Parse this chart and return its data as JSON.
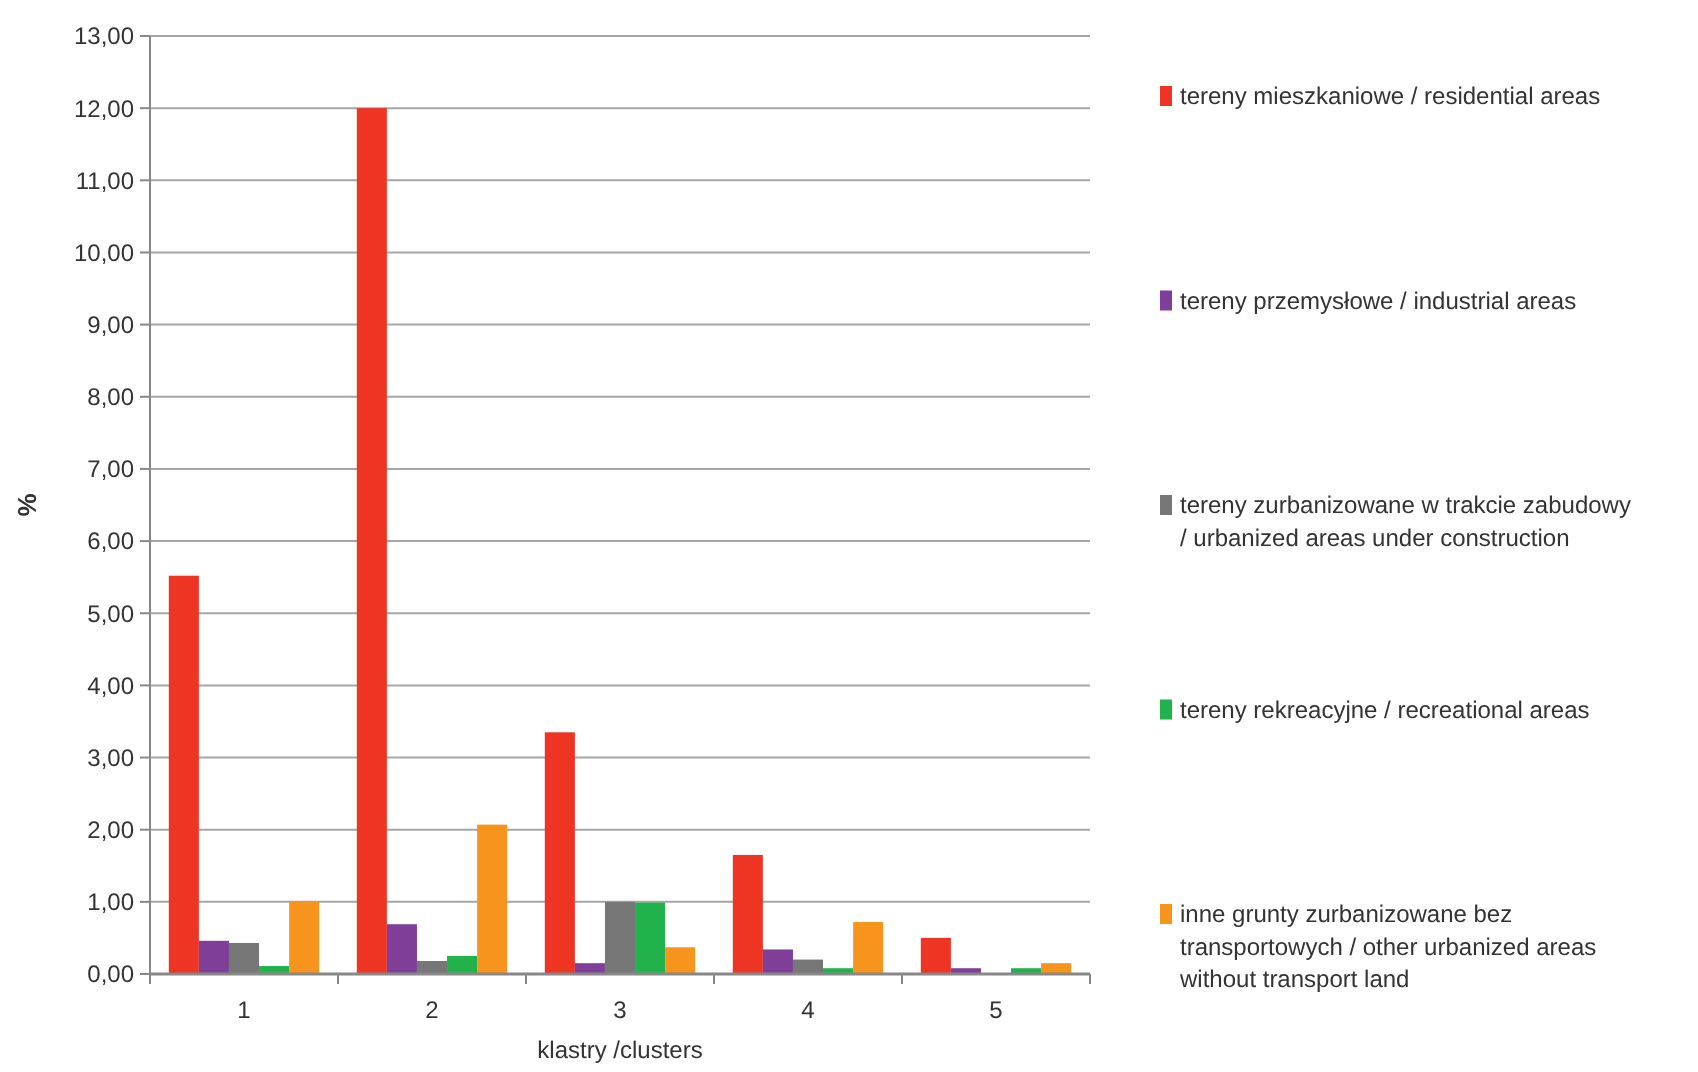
{
  "chart_data": {
    "type": "bar",
    "xlabel": "klastry /clusters",
    "ylabel": "%",
    "categories": [
      "1",
      "2",
      "3",
      "4",
      "5"
    ],
    "series": [
      {
        "name": "tereny mieszkaniowe / residential areas",
        "color": "#ee3524",
        "values": [
          5.52,
          12.0,
          3.35,
          1.65,
          0.5
        ]
      },
      {
        "name": "tereny przemysłowe / industrial areas",
        "color": "#7f3f98",
        "values": [
          0.46,
          0.69,
          0.15,
          0.34,
          0.08
        ]
      },
      {
        "name": "tereny zurbanizowane w trakcie zabudowy / urbanized areas under construction",
        "color": "#777777",
        "values": [
          0.43,
          0.18,
          1.0,
          0.2,
          0
        ]
      },
      {
        "name": "tereny rekreacyjne / recreational areas",
        "color": "#21b24b",
        "values": [
          0.11,
          0.25,
          0.99,
          0.08,
          0.08
        ]
      },
      {
        "name": "inne grunty zurbanizowane bez transportowych / other urbanized areas without transport land",
        "color": "#f7941d",
        "values": [
          1.0,
          2.07,
          0.37,
          0.72,
          0.15
        ]
      }
    ],
    "ylim": [
      0,
      13
    ],
    "yticks": [
      {
        "value": 0,
        "label": "0,00"
      },
      {
        "value": 1,
        "label": "1,00"
      },
      {
        "value": 2,
        "label": "2,00"
      },
      {
        "value": 3,
        "label": "3,00"
      },
      {
        "value": 4,
        "label": "4,00"
      },
      {
        "value": 5,
        "label": "5,00"
      },
      {
        "value": 6,
        "label": "6,00"
      },
      {
        "value": 7,
        "label": "7,00"
      },
      {
        "value": 8,
        "label": "8,00"
      },
      {
        "value": 9,
        "label": "9,00"
      },
      {
        "value": 10,
        "label": "10,00"
      },
      {
        "value": 11,
        "label": "11,00"
      },
      {
        "value": 12,
        "label": "12,00"
      },
      {
        "value": 13,
        "label": "13,00"
      }
    ],
    "grid": "y",
    "legend": "right"
  }
}
